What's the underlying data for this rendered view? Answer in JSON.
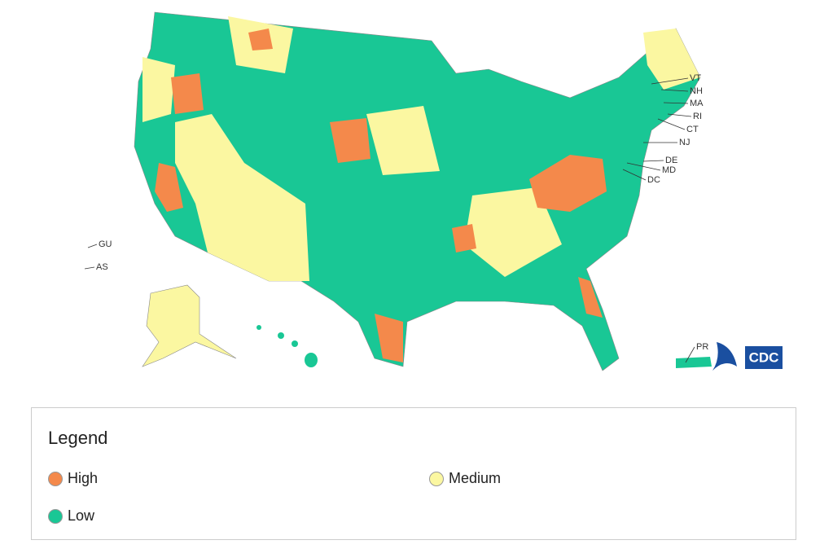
{
  "map": {
    "labels": [
      "VT",
      "NH",
      "MA",
      "RI",
      "CT",
      "NJ",
      "DE",
      "MD",
      "DC",
      "GU",
      "AS",
      "PR"
    ],
    "logo": "CDC"
  },
  "legend": {
    "title": "Legend",
    "items": [
      {
        "name": "High",
        "color": "#f4894b"
      },
      {
        "name": "Medium",
        "color": "#fbf7a1"
      },
      {
        "name": "Low",
        "color": "#19c795"
      }
    ]
  }
}
